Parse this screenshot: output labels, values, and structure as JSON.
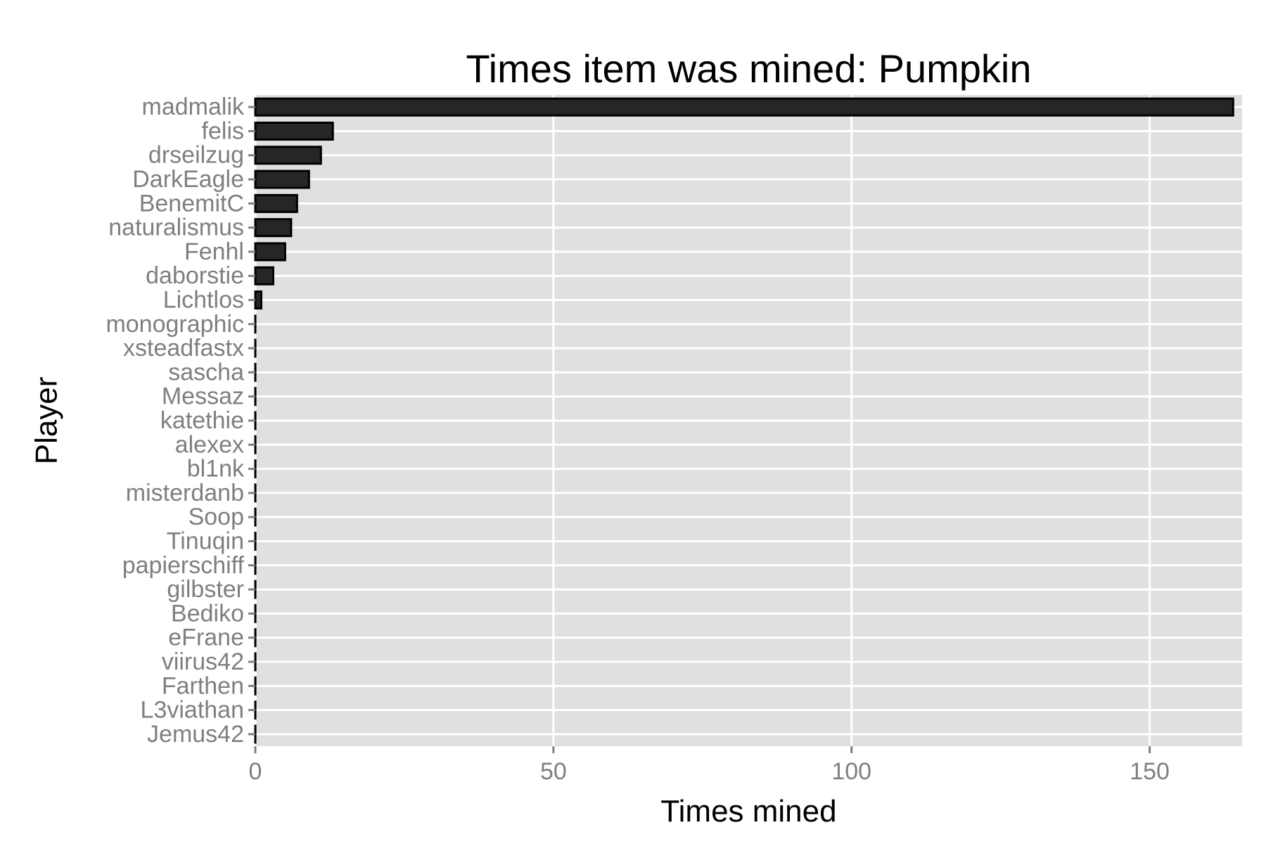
{
  "chart_data": {
    "type": "bar",
    "orientation": "horizontal",
    "title": "Times item was mined: Pumpkin",
    "xlabel": "Times mined",
    "ylabel": "Player",
    "xlim": [
      0,
      165.5
    ],
    "xticks": [
      0,
      50,
      100,
      150
    ],
    "grid": true,
    "legend": "none",
    "categories": [
      "madmalik",
      "felis",
      "drseilzug",
      "DarkEagle",
      "BenemitC",
      "naturalismus",
      "Fenhl",
      "daborstie",
      "Lichtlos",
      "monographic",
      "xsteadfastx",
      "sascha",
      "Messaz",
      "katethie",
      "alexex",
      "bl1nk",
      "misterdanb",
      "Soop",
      "Tinuqin",
      "papierschiff",
      "gilbster",
      "Bediko",
      "eFrane",
      "viirus42",
      "Farthen",
      "L3viathan",
      "Jemus42"
    ],
    "values": [
      164,
      13,
      11,
      9,
      7,
      6,
      5,
      3,
      1,
      0,
      0,
      0,
      0,
      0,
      0,
      0,
      0,
      0,
      0,
      0,
      0,
      0,
      0,
      0,
      0,
      0,
      0
    ],
    "colors": {
      "panel": "#e0e0e0",
      "grid": "#ffffff",
      "bar_fill": "#262626",
      "bar_stroke": "#000000",
      "tick_text": "#7f7f7f",
      "tick_mark": "#7f7f7f"
    }
  }
}
